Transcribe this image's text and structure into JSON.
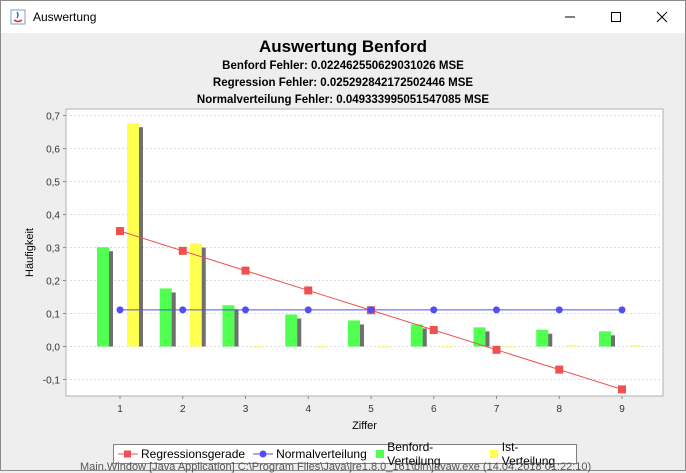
{
  "window": {
    "title": "Auswertung"
  },
  "chart_titles": {
    "main": "Auswertung Benford",
    "line1": "Benford Fehler: 0.022462550629031026 MSE",
    "line2": "Regression Fehler: 0.025292842172502446 MSE",
    "line3": "Normalverteilung Fehler: 0.049333995051547085 MSE"
  },
  "colors": {
    "regression": "#f05050",
    "normal": "#5050f0",
    "benford": "#50ff50",
    "ist": "#ffff50",
    "shadow": "#707070"
  },
  "chart_data": {
    "type": "bar",
    "title": "Auswertung Benford",
    "xlabel": "Ziffer",
    "ylabel": "Häufigkeit",
    "categories": [
      "1",
      "2",
      "3",
      "4",
      "5",
      "6",
      "7",
      "8",
      "9"
    ],
    "ylim": [
      -0.15,
      0.72
    ],
    "yticks": [
      "0,7",
      "0,6",
      "0,5",
      "0,4",
      "0,3",
      "0,2",
      "0,1",
      "0,0",
      "-0,1"
    ],
    "ytick_values": [
      0.7,
      0.6,
      0.5,
      0.4,
      0.3,
      0.2,
      0.1,
      0.0,
      -0.1
    ],
    "grid": true,
    "legend_position": "bottom",
    "bar_series": [
      {
        "name": "Benford-Verteilung",
        "values": [
          0.301,
          0.176,
          0.125,
          0.097,
          0.079,
          0.067,
          0.058,
          0.051,
          0.046
        ]
      },
      {
        "name": "Ist-Verteilung",
        "values": [
          0.677,
          0.312,
          0.0,
          0.0,
          0.0,
          0.0,
          0.0,
          0.004,
          0.004
        ]
      }
    ],
    "line_series": [
      {
        "name": "Regressionsgerade",
        "values": [
          0.35,
          0.29,
          0.23,
          0.17,
          0.11,
          0.05,
          -0.01,
          -0.07,
          -0.13
        ]
      },
      {
        "name": "Normalverteilung",
        "values": [
          0.111,
          0.111,
          0.111,
          0.111,
          0.111,
          0.111,
          0.111,
          0.111,
          0.111
        ]
      }
    ]
  },
  "legend": {
    "items": [
      "Regressionsgerade",
      "Normalverteilung",
      "Benford-Verteilung",
      "Ist-Verteilung"
    ]
  },
  "background_text": "Main.Window [Java Application] C:\\Program Files\\Java\\jre1.8.0_161\\bin\\javaw.exe (14.04.2018 01:22:10)"
}
